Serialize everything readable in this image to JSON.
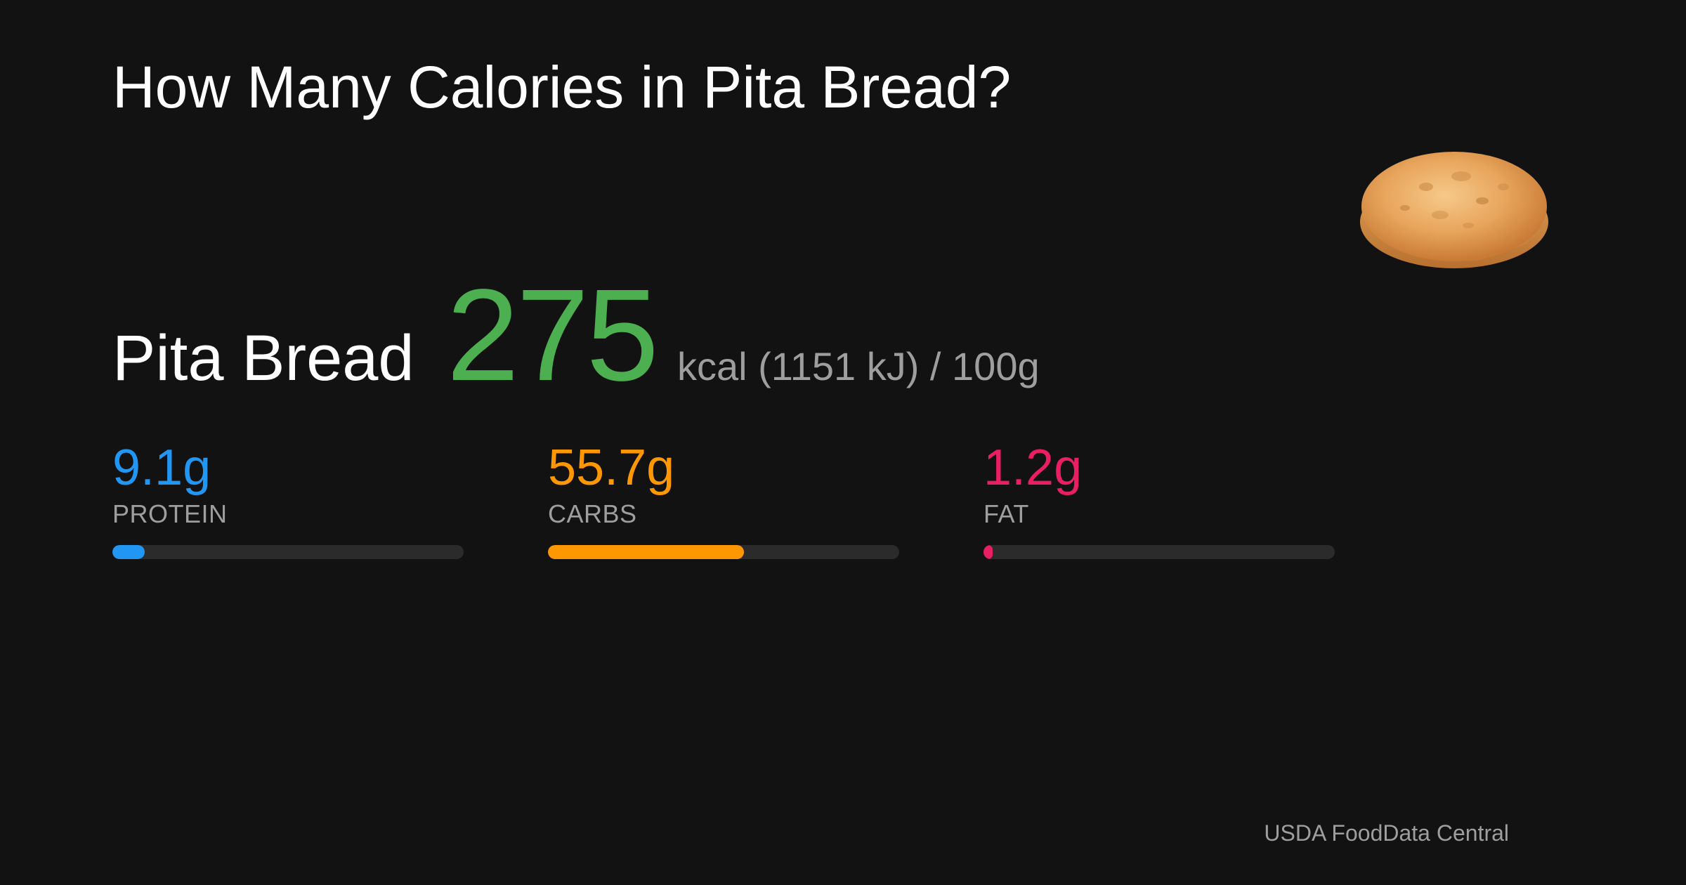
{
  "title": "How Many Calories in Pita Bread?",
  "food": {
    "name": "Pita Bread",
    "image_icon": "pita-bread-image",
    "calories": "275",
    "unit_text": "kcal (1151 kJ) / 100g",
    "calorie_color": "#4caf50"
  },
  "macros": [
    {
      "value": "9.1g",
      "label": "PROTEIN",
      "color": "#2196f3",
      "fraction": 0.091
    },
    {
      "value": "55.7g",
      "label": "CARBS",
      "color": "#ff9800",
      "fraction": 0.557
    },
    {
      "value": "1.2g",
      "label": "FAT",
      "color": "#e91e63",
      "fraction": 0.012
    }
  ],
  "source": "USDA FoodData Central"
}
